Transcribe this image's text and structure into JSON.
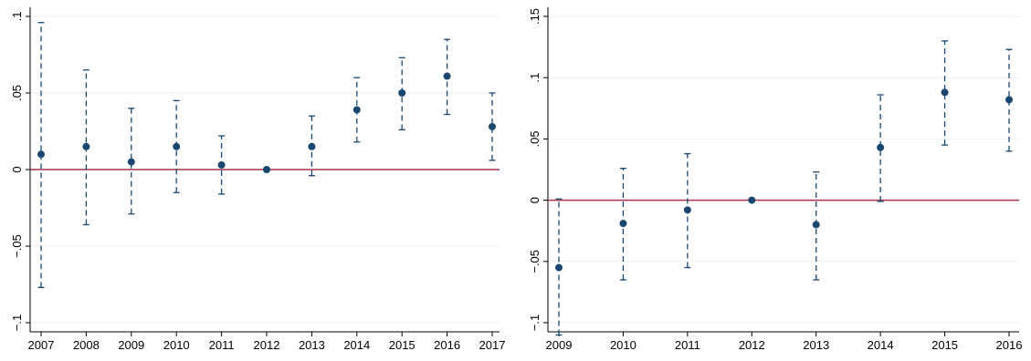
{
  "chart_data": [
    {
      "type": "scatter",
      "subtype": "coefficient-plot-with-confidence-intervals",
      "x_ticks": [
        "2007",
        "2008",
        "2009",
        "2010",
        "2011",
        "2012",
        "2013",
        "2014",
        "2015",
        "2016",
        "2017"
      ],
      "y_ticks": [
        {
          "value": 0.1,
          "label": ".1"
        },
        {
          "value": 0.05,
          "label": ".05"
        },
        {
          "value": 0,
          "label": "0"
        },
        {
          "value": -0.05,
          "label": "-.05"
        },
        {
          "value": -0.1,
          "label": "-.1"
        }
      ],
      "ylim": [
        -0.1,
        0.1
      ],
      "grid": true,
      "reference_line": {
        "y": 0,
        "color": "#a7334f"
      },
      "points": [
        {
          "x": "2007",
          "y": 0.01,
          "lo": -0.077,
          "hi": 0.096
        },
        {
          "x": "2008",
          "y": 0.015,
          "lo": -0.036,
          "hi": 0.065
        },
        {
          "x": "2009",
          "y": 0.005,
          "lo": -0.029,
          "hi": 0.04
        },
        {
          "x": "2010",
          "y": 0.015,
          "lo": -0.015,
          "hi": 0.045
        },
        {
          "x": "2011",
          "y": 0.003,
          "lo": -0.016,
          "hi": 0.022
        },
        {
          "x": "2012",
          "y": 0.0,
          "lo": 0.0,
          "hi": 0.0
        },
        {
          "x": "2013",
          "y": 0.015,
          "lo": -0.004,
          "hi": 0.035
        },
        {
          "x": "2014",
          "y": 0.039,
          "lo": 0.018,
          "hi": 0.06
        },
        {
          "x": "2015",
          "y": 0.05,
          "lo": 0.026,
          "hi": 0.073
        },
        {
          "x": "2016",
          "y": 0.061,
          "lo": 0.036,
          "hi": 0.085
        },
        {
          "x": "2017",
          "y": 0.028,
          "lo": 0.006,
          "hi": 0.05
        }
      ]
    },
    {
      "type": "scatter",
      "subtype": "coefficient-plot-with-confidence-intervals",
      "x_ticks": [
        "2009",
        "2010",
        "2011",
        "2012",
        "2013",
        "2014",
        "2015",
        "2016"
      ],
      "y_ticks": [
        {
          "value": 0.15,
          "label": ".15"
        },
        {
          "value": 0.1,
          "label": ".1"
        },
        {
          "value": 0.05,
          "label": ".05"
        },
        {
          "value": 0,
          "label": "0"
        },
        {
          "value": -0.05,
          "label": "-.05"
        },
        {
          "value": -0.1,
          "label": "-.1"
        }
      ],
      "ylim": [
        -0.1,
        0.15
      ],
      "grid": true,
      "reference_line": {
        "y": 0,
        "color": "#a7334f"
      },
      "points": [
        {
          "x": "2009",
          "y": -0.055,
          "lo": -0.11,
          "hi": 0.001
        },
        {
          "x": "2010",
          "y": -0.019,
          "lo": -0.065,
          "hi": 0.026
        },
        {
          "x": "2011",
          "y": -0.008,
          "lo": -0.055,
          "hi": 0.038
        },
        {
          "x": "2012",
          "y": 0.0,
          "lo": 0.0,
          "hi": 0.0
        },
        {
          "x": "2013",
          "y": -0.02,
          "lo": -0.065,
          "hi": 0.023
        },
        {
          "x": "2014",
          "y": 0.043,
          "lo": -0.001,
          "hi": 0.086
        },
        {
          "x": "2015",
          "y": 0.088,
          "lo": 0.045,
          "hi": 0.13
        },
        {
          "x": "2016",
          "y": 0.082,
          "lo": 0.04,
          "hi": 0.123
        }
      ]
    }
  ],
  "colors": {
    "point": "#1a476f",
    "ci_line": "#1a476f",
    "reference": "#a7334f",
    "grid": "#eaf2f3",
    "axis": "#000000"
  }
}
